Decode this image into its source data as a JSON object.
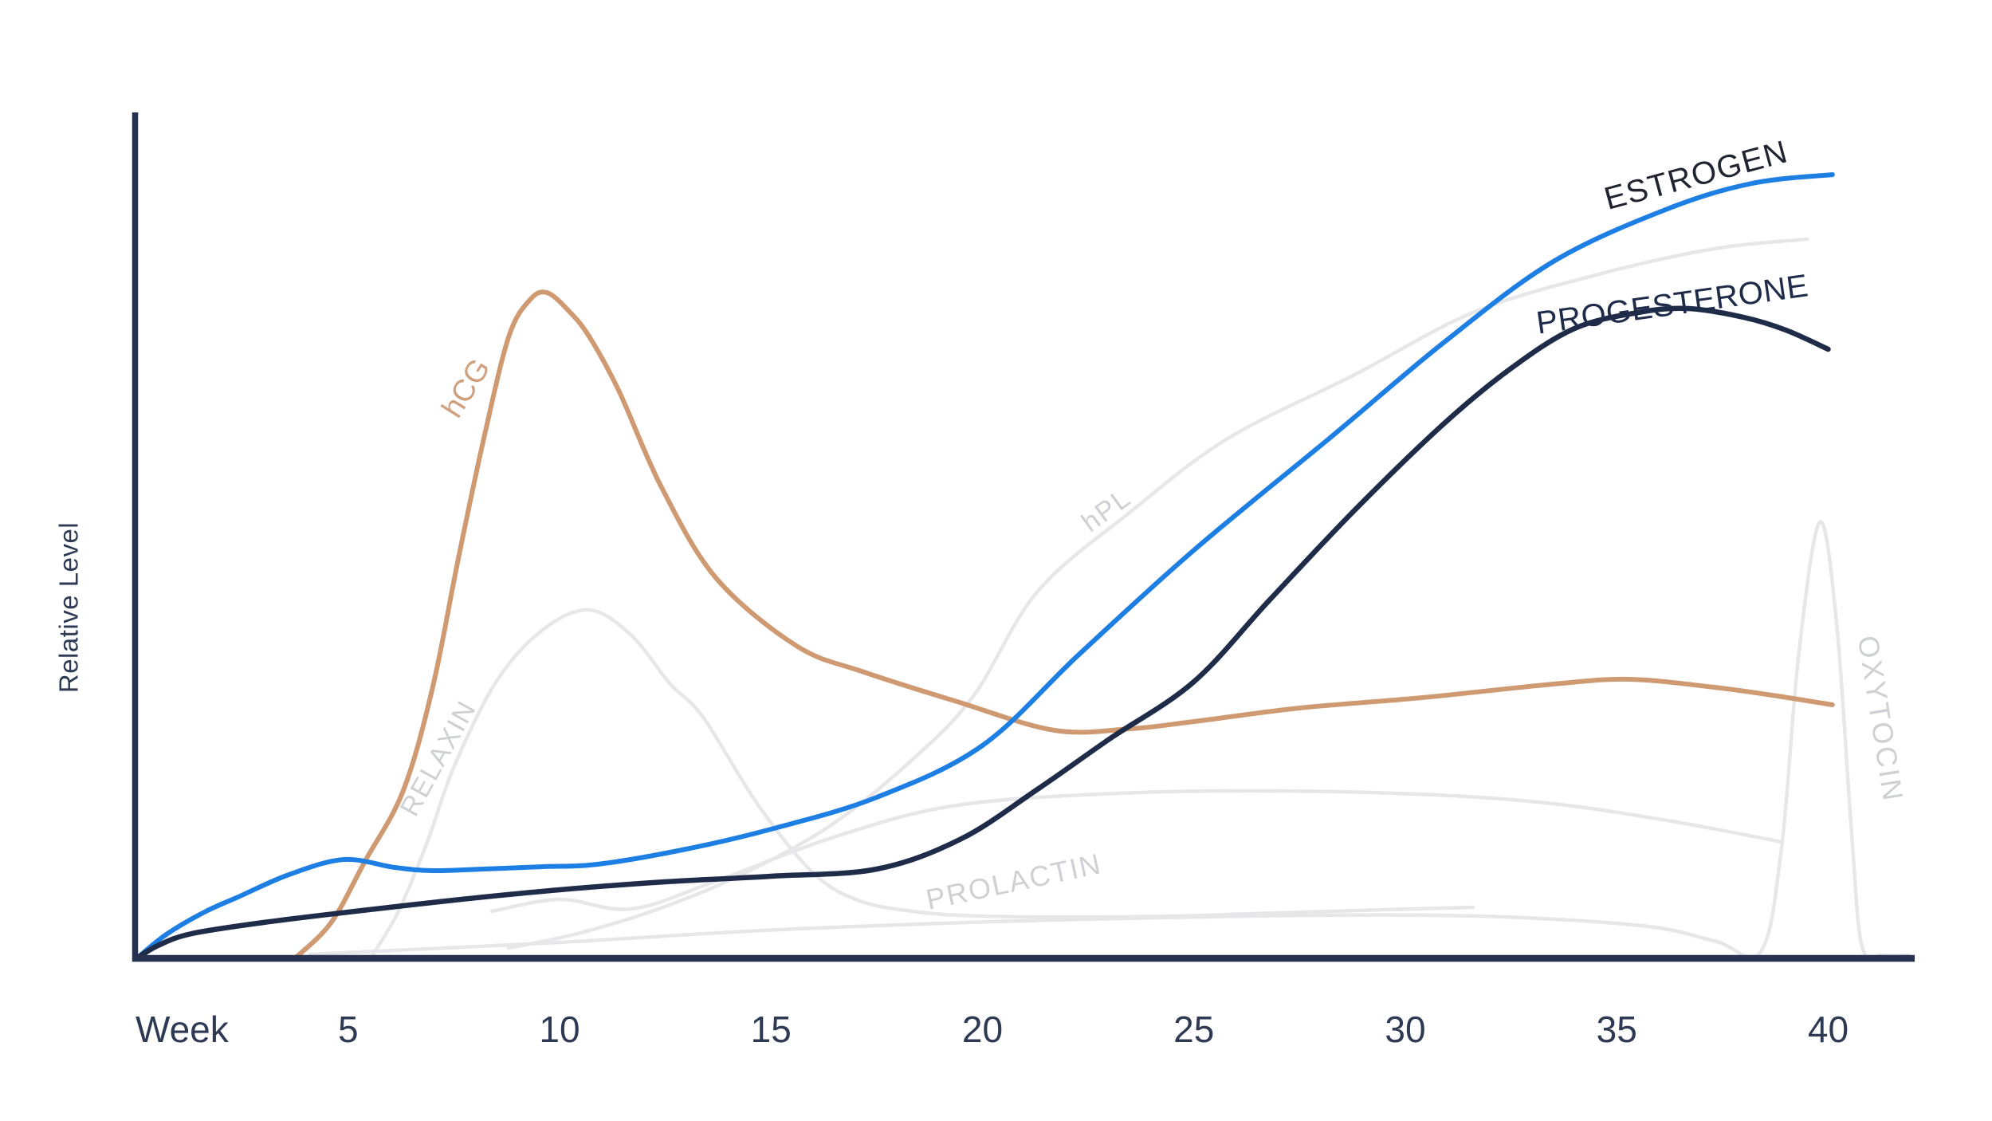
{
  "axis": {
    "y_label": "Relative Level",
    "x_label": "Week",
    "x_ticks": [
      5,
      10,
      15,
      20,
      25,
      30,
      35,
      40
    ]
  },
  "colors": {
    "background": "#ffffff",
    "axis": "#24324f",
    "tick_text": "#2e3a54",
    "estrogen": "#1d7ee3",
    "estrogen_label": "#1f2430",
    "progesterone": "#1e2c49",
    "hcg": "#cf9a71",
    "hcg_label": "#cfa07d",
    "muted": "#e7e7e9",
    "muted_label": "#cfd0d4"
  },
  "chart_data": {
    "type": "line",
    "title": "",
    "xlabel": "Week",
    "ylabel": "Relative Level",
    "x_range": [
      0,
      42
    ],
    "y_range": [
      0,
      105
    ],
    "grid": false,
    "legend": "labels-on-curves",
    "series": [
      {
        "key": "oxytocin",
        "emphasis": "muted",
        "color_key": "muted",
        "points": [
          [
            4.1,
            0.5
          ],
          [
            10,
            2
          ],
          [
            15.6,
            3.7
          ],
          [
            23.2,
            5
          ],
          [
            30.7,
            5.4
          ],
          [
            35.4,
            4.2
          ],
          [
            37.3,
            2.2
          ],
          [
            38.4,
            0.8
          ],
          [
            38.9,
            14
          ],
          [
            39.3,
            38
          ],
          [
            39.8,
            54.7
          ],
          [
            40.2,
            42
          ],
          [
            40.55,
            16
          ],
          [
            40.8,
            1.5
          ],
          [
            41.3,
            0.4
          ],
          [
            41.9,
            0.4
          ]
        ]
      },
      {
        "key": "relaxin",
        "emphasis": "muted",
        "color_key": "muted",
        "points": [
          [
            5.6,
            0.6
          ],
          [
            6.2,
            6
          ],
          [
            6.9,
            15
          ],
          [
            7.5,
            24
          ],
          [
            8.5,
            34.7
          ],
          [
            9.6,
            41.2
          ],
          [
            10.7,
            43.7
          ],
          [
            11.7,
            40.5
          ],
          [
            12.6,
            34.5
          ],
          [
            13.4,
            30.2
          ],
          [
            14.7,
            19.2
          ],
          [
            16,
            10.7
          ],
          [
            17.1,
            7.2
          ],
          [
            18.5,
            5.8
          ],
          [
            20,
            5.3
          ],
          [
            22,
            5.2
          ],
          [
            24.5,
            5.3
          ],
          [
            27,
            5.7
          ],
          [
            29.5,
            6.1
          ],
          [
            31.6,
            6.4
          ]
        ]
      },
      {
        "key": "prolactin",
        "emphasis": "muted",
        "color_key": "muted",
        "points": [
          [
            8.4,
            5.9
          ],
          [
            10,
            7.4
          ],
          [
            11.7,
            6.2
          ],
          [
            13.7,
            9.7
          ],
          [
            16.6,
            15.4
          ],
          [
            19.4,
            19.2
          ],
          [
            23.2,
            20.7
          ],
          [
            26.9,
            21
          ],
          [
            30.7,
            20.5
          ],
          [
            33.5,
            19.4
          ],
          [
            36.3,
            17.2
          ],
          [
            38.9,
            14.6
          ]
        ]
      },
      {
        "key": "hpl",
        "emphasis": "muted",
        "color_key": "muted",
        "points": [
          [
            8.8,
            1.3
          ],
          [
            10.5,
            3.2
          ],
          [
            12.5,
            6.5
          ],
          [
            14.5,
            11
          ],
          [
            16.5,
            17
          ],
          [
            18.4,
            25.2
          ],
          [
            19.8,
            33
          ],
          [
            21.3,
            46
          ],
          [
            23.5,
            56
          ],
          [
            25.8,
            65.2
          ],
          [
            28.8,
            73.2
          ],
          [
            31.6,
            81
          ],
          [
            34.5,
            85.7
          ],
          [
            37.3,
            89
          ],
          [
            39.5,
            90.2
          ]
        ]
      },
      {
        "key": "hcg",
        "emphasis": "main",
        "color_key": "hcg",
        "points": [
          [
            3.74,
            0
          ],
          [
            4.6,
            4.5
          ],
          [
            5.4,
            12.2
          ],
          [
            6.3,
            21
          ],
          [
            7,
            34
          ],
          [
            7.6,
            50
          ],
          [
            8.2,
            65
          ],
          [
            8.8,
            78
          ],
          [
            9.3,
            82.6
          ],
          [
            9.7,
            83.5
          ],
          [
            10.2,
            81.3
          ],
          [
            10.7,
            78
          ],
          [
            11.4,
            71.2
          ],
          [
            12.4,
            59.2
          ],
          [
            13.7,
            47.7
          ],
          [
            15.6,
            39.2
          ],
          [
            17.2,
            35.9
          ],
          [
            19.4,
            32.2
          ],
          [
            21.7,
            28.6
          ],
          [
            23.5,
            28.8
          ],
          [
            25,
            29.7
          ],
          [
            27.5,
            31.4
          ],
          [
            30.4,
            32.7
          ],
          [
            33.5,
            34.4
          ],
          [
            35.3,
            35
          ],
          [
            37.3,
            34
          ],
          [
            38.8,
            32.9
          ],
          [
            40.1,
            31.8
          ]
        ]
      },
      {
        "key": "estrogen",
        "emphasis": "main",
        "color_key": "estrogen",
        "points": [
          [
            0,
            0
          ],
          [
            0.7,
            3
          ],
          [
            1.6,
            5.8
          ],
          [
            2.4,
            7.7
          ],
          [
            3.6,
            10.5
          ],
          [
            4.9,
            12.4
          ],
          [
            6.1,
            11.4
          ],
          [
            7,
            11
          ],
          [
            8.2,
            11.2
          ],
          [
            9.6,
            11.5
          ],
          [
            10.9,
            11.8
          ],
          [
            12.9,
            13.6
          ],
          [
            15,
            16.2
          ],
          [
            17.5,
            20.2
          ],
          [
            20,
            26.7
          ],
          [
            22.3,
            38.2
          ],
          [
            25,
            51.2
          ],
          [
            28.2,
            65.2
          ],
          [
            30.9,
            77.2
          ],
          [
            33.5,
            87.4
          ],
          [
            36.2,
            94
          ],
          [
            38.2,
            97.2
          ],
          [
            40.1,
            98.3
          ]
        ]
      },
      {
        "key": "progesterone",
        "emphasis": "main",
        "color_key": "progesterone",
        "points": [
          [
            0,
            0
          ],
          [
            0.5,
            1.6
          ],
          [
            1.3,
            3.1
          ],
          [
            3,
            4.5
          ],
          [
            5,
            5.8
          ],
          [
            7.5,
            7.3
          ],
          [
            10,
            8.6
          ],
          [
            12.5,
            9.6
          ],
          [
            15,
            10.3
          ],
          [
            17.5,
            11.2
          ],
          [
            19.5,
            15
          ],
          [
            21.3,
            21.2
          ],
          [
            23,
            27.5
          ],
          [
            25,
            34.7
          ],
          [
            26.8,
            45
          ],
          [
            28.8,
            56.2
          ],
          [
            30.9,
            67
          ],
          [
            32.5,
            74
          ],
          [
            34,
            79
          ],
          [
            35.5,
            81
          ],
          [
            36.7,
            81.5
          ],
          [
            38,
            80.4
          ],
          [
            39,
            78.8
          ],
          [
            40,
            76.4
          ]
        ]
      }
    ],
    "curve_labels": [
      {
        "text": "hCG",
        "week": 7.79,
        "level": 71.5,
        "rotate": -58,
        "size": 38,
        "spacing": 0,
        "color_key": "hcg_label"
      },
      {
        "text": "RELAXIN",
        "week": 7.13,
        "level": 25.1,
        "rotate": -61,
        "size": 34,
        "spacing": 2,
        "color_key": "muted_label"
      },
      {
        "text": "hPL",
        "week": 22.93,
        "level": 56.2,
        "rotate": -36,
        "size": 34,
        "spacing": 2,
        "color_key": "muted_label"
      },
      {
        "text": "PROLACTIN",
        "week": 20.75,
        "level": 9.6,
        "rotate": -12,
        "size": 36,
        "spacing": 2,
        "color_key": "muted_label"
      },
      {
        "text": "OXYTOCIN",
        "week": 41.23,
        "level": 30.0,
        "rotate": 81,
        "size": 36,
        "spacing": 3,
        "color_key": "muted_label"
      },
      {
        "text": "ESTROGEN",
        "week": 36.88,
        "level": 98.2,
        "rotate": -15,
        "size": 40,
        "spacing": 1.5,
        "color_key": "estrogen_label"
      },
      {
        "text": "PROGESTERONE",
        "week": 36.32,
        "level": 82.0,
        "rotate": -8,
        "size": 40,
        "spacing": 0.5,
        "color_key": "progesterone"
      }
    ]
  }
}
